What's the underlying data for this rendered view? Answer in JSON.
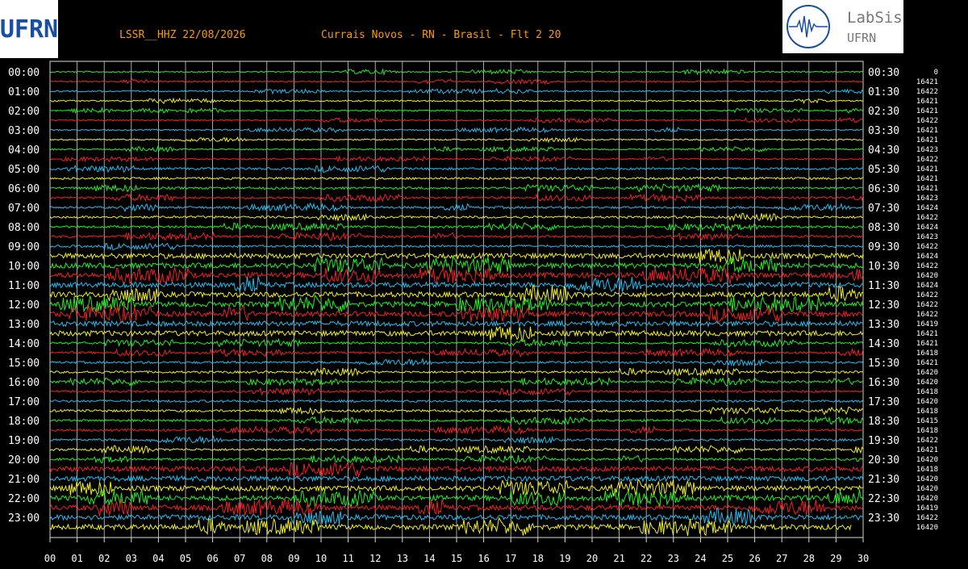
{
  "header": {
    "station": "LSSR__HHZ 22/08/2026",
    "location": "Currais Novos - RN - Brasil - Flt 2 20"
  },
  "logo_left": {
    "text": "UFRN"
  },
  "logo_right": {
    "name": "LabSis",
    "org": "UFRN"
  },
  "left_labels": [
    "00:00",
    "01:00",
    "02:00",
    "03:00",
    "04:00",
    "05:00",
    "06:00",
    "07:00",
    "08:00",
    "09:00",
    "10:00",
    "11:00",
    "12:00",
    "13:00",
    "14:00",
    "15:00",
    "16:00",
    "17:00",
    "18:00",
    "19:00",
    "20:00",
    "21:00",
    "22:00",
    "23:00"
  ],
  "right_labels": [
    "00:30",
    "01:30",
    "02:30",
    "03:30",
    "04:30",
    "05:30",
    "06:30",
    "07:30",
    "08:30",
    "09:30",
    "10:30",
    "11:30",
    "12:30",
    "13:30",
    "14:30",
    "15:30",
    "16:30",
    "17:30",
    "18:30",
    "19:30",
    "20:30",
    "21:30",
    "22:30",
    "23:30"
  ],
  "counts": [
    "0",
    "16421",
    "16422",
    "16421",
    "16421",
    "16422",
    "16421",
    "16421",
    "16423",
    "16422",
    "16421",
    "16421",
    "16421",
    "16423",
    "16424",
    "16422",
    "16424",
    "16423",
    "16422",
    "16424",
    "16422",
    "16420",
    "16424",
    "16422",
    "16422",
    "16422",
    "16419",
    "16421",
    "16421",
    "16418",
    "16421",
    "16420",
    "16420",
    "16418",
    "16420",
    "16418",
    "16415",
    "16418",
    "16422",
    "16421",
    "16420",
    "16418",
    "16420",
    "16420",
    "16420",
    "16419",
    "16422",
    "16420"
  ],
  "x_labels": [
    "00",
    "01",
    "02",
    "03",
    "04",
    "05",
    "06",
    "07",
    "08",
    "09",
    "10",
    "11",
    "12",
    "13",
    "14",
    "15",
    "16",
    "17",
    "18",
    "19",
    "20",
    "21",
    "22",
    "23",
    "24",
    "25",
    "26",
    "27",
    "28",
    "29",
    "30"
  ],
  "trace_colors": [
    "#22ee22",
    "#ee2222",
    "#22bbee",
    "#eeee22"
  ]
}
